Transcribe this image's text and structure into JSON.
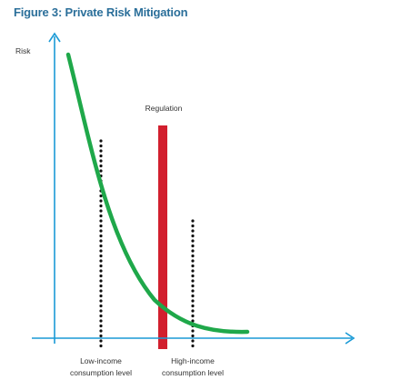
{
  "title": "Figure 3: Private Risk Mitigation",
  "y_axis_label": "Risk",
  "regulation_label": "Regulation",
  "low_income_label": [
    "Low-income",
    "consumption level"
  ],
  "high_income_label": [
    "High-income",
    "consumption level"
  ],
  "colors": {
    "title": "#2b6f9a",
    "axis": "#1a9ad6",
    "curve": "#1fa84a",
    "regulation_bar": "#d21f2e",
    "dotted_lines": "#111111",
    "text": "#333333"
  }
}
